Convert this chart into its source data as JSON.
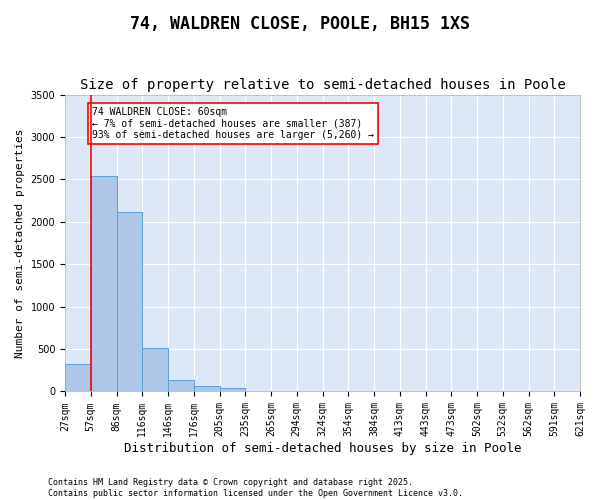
{
  "title": "74, WALDREN CLOSE, POOLE, BH15 1XS",
  "subtitle": "Size of property relative to semi-detached houses in Poole",
  "xlabel": "Distribution of semi-detached houses by size in Poole",
  "ylabel": "Number of semi-detached properties",
  "bar_values": [
    320,
    2540,
    2110,
    510,
    140,
    65,
    40,
    0,
    0,
    0,
    0,
    0,
    0,
    0,
    0,
    0,
    0,
    0,
    0,
    0
  ],
  "categories": [
    "27sqm",
    "57sqm",
    "86sqm",
    "116sqm",
    "146sqm",
    "176sqm",
    "205sqm",
    "235sqm",
    "265sqm",
    "294sqm",
    "324sqm",
    "354sqm",
    "384sqm",
    "413sqm",
    "443sqm",
    "473sqm",
    "502sqm",
    "532sqm",
    "562sqm",
    "591sqm",
    "621sqm"
  ],
  "bar_color": "#aec6e8",
  "bar_edge_color": "#5a9fd4",
  "background_color": "#dce8f5",
  "vline_x": 1,
  "vline_color": "red",
  "ylim": [
    0,
    3500
  ],
  "yticks": [
    0,
    500,
    1000,
    1500,
    2000,
    2500,
    3000,
    3500
  ],
  "annotation_text": "74 WALDREN CLOSE: 60sqm\n← 7% of semi-detached houses are smaller (387)\n93% of semi-detached houses are larger (5,260) →",
  "annotation_box_color": "white",
  "annotation_box_edge": "red",
  "footer_text": "Contains HM Land Registry data © Crown copyright and database right 2025.\nContains public sector information licensed under the Open Government Licence v3.0.",
  "title_fontsize": 12,
  "subtitle_fontsize": 10,
  "xlabel_fontsize": 9,
  "ylabel_fontsize": 8,
  "tick_fontsize": 7,
  "annot_fontsize": 7,
  "footer_fontsize": 6
}
